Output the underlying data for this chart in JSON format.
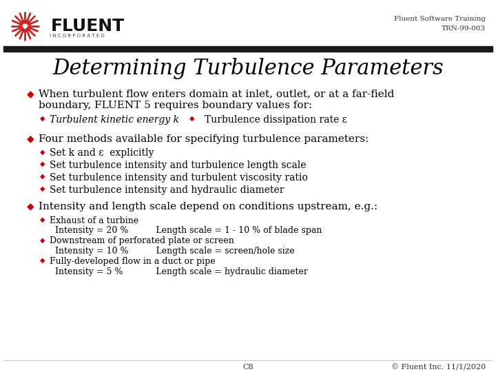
{
  "title": "Determining Turbulence Parameters",
  "header_right_line1": "Fluent Software Training",
  "header_right_line2": "TRN-99-003",
  "bg_color": "#ffffff",
  "header_bar_color": "#1a1a1a",
  "title_color": "#000000",
  "bullet_color": "#cc0000",
  "text_color": "#000000",
  "footer_page": "C8",
  "footer_copy": "© Fluent Inc. 11/1/2020",
  "main_bullets": [
    {
      "text": "When turbulent flow enters domain at inlet, outlet, or at a far-field\nboundary, FLUENT 5 requires boundary values for:",
      "sub_bullets": [
        {
          "text": "Turbulent kinetic energy k",
          "col": 0
        },
        {
          "text": "Turbulence dissipation rate ε",
          "col": 1
        }
      ]
    },
    {
      "text": "Four methods available for specifying turbulence parameters:",
      "sub_bullets": [
        {
          "text": "Set k and ε  explicitly",
          "col": 0
        },
        {
          "text": "Set turbulence intensity and turbulence length scale",
          "col": 0
        },
        {
          "text": "Set turbulence intensity and turbulent viscosity ratio",
          "col": 0
        },
        {
          "text": "Set turbulence intensity and hydraulic diameter",
          "col": 0
        }
      ]
    },
    {
      "text": "Intensity and length scale depend on conditions upstream, e.g.:",
      "sub_bullets": [
        {
          "text": "Exhaust of a turbine",
          "col": 0,
          "extra": "Intensity = 20 %          Length scale = 1 - 10 % of blade span"
        },
        {
          "text": "Downstream of perforated plate or screen",
          "col": 0,
          "extra": "Intensity = 10 %          Length scale = screen/hole size"
        },
        {
          "text": "Fully-developed flow in a duct or pipe",
          "col": 0,
          "extra": "Intensity = 5 %            Length scale = hydraulic diameter"
        }
      ]
    }
  ]
}
